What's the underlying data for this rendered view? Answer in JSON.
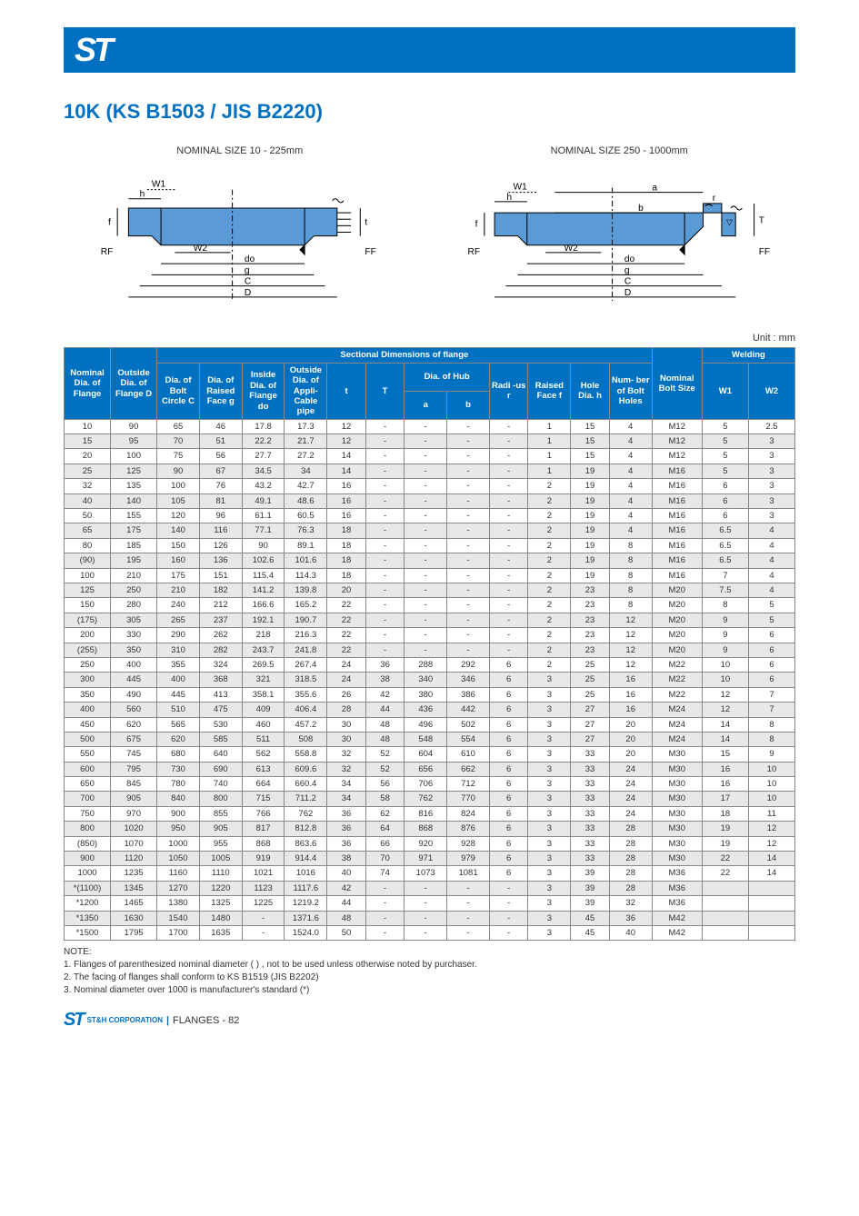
{
  "logo": "ST",
  "title": "10K (KS B1503 / JIS B2220)",
  "diagram1_label": "NOMINAL SIZE 10 - 225mm",
  "diagram2_label": "NOMINAL SIZE 250 - 1000mm",
  "unit_label": "Unit : mm",
  "colors": {
    "brand": "#0070c0",
    "header_bg": "#0070c0",
    "header_fg": "#ffffff",
    "row_even": "#e8e8e8",
    "row_odd": "#ffffff",
    "border": "#888888",
    "diagram_fill": "#5b9bd5"
  },
  "headers": {
    "h1": "Nominal Dia. of Flange",
    "h2": "Outside Dia. of Flange D",
    "sectional": "Sectional Dimensions of flange",
    "h3": "Dia. of Bolt Circle C",
    "h4": "Dia. of Raised Face g",
    "h5": "Inside Dia. of Flange do",
    "h6": "Outside Dia. of Appli- Cable pipe",
    "h7": "t",
    "h8": "T",
    "hub": "Dia. of Hub",
    "h9": "a",
    "h10": "b",
    "h11": "Radi -us r",
    "h12": "Raised Face f",
    "h13": "Hole Dia. h",
    "h14": "Num- ber of Bolt Holes",
    "h15": "Nominal Bolt Size",
    "welding": "Welding",
    "h16": "W1",
    "h17": "W2"
  },
  "rows": [
    [
      "10",
      "90",
      "65",
      "46",
      "17.8",
      "17.3",
      "12",
      "-",
      "-",
      "-",
      "-",
      "1",
      "15",
      "4",
      "M12",
      "5",
      "2.5"
    ],
    [
      "15",
      "95",
      "70",
      "51",
      "22.2",
      "21.7",
      "12",
      "-",
      "-",
      "-",
      "-",
      "1",
      "15",
      "4",
      "M12",
      "5",
      "3"
    ],
    [
      "20",
      "100",
      "75",
      "56",
      "27.7",
      "27.2",
      "14",
      "-",
      "-",
      "-",
      "-",
      "1",
      "15",
      "4",
      "M12",
      "5",
      "3"
    ],
    [
      "25",
      "125",
      "90",
      "67",
      "34.5",
      "34",
      "14",
      "-",
      "-",
      "-",
      "-",
      "1",
      "19",
      "4",
      "M16",
      "5",
      "3"
    ],
    [
      "32",
      "135",
      "100",
      "76",
      "43.2",
      "42.7",
      "16",
      "-",
      "-",
      "-",
      "-",
      "2",
      "19",
      "4",
      "M16",
      "6",
      "3"
    ],
    [
      "40",
      "140",
      "105",
      "81",
      "49.1",
      "48.6",
      "16",
      "-",
      "-",
      "-",
      "-",
      "2",
      "19",
      "4",
      "M16",
      "6",
      "3"
    ],
    [
      "50",
      "155",
      "120",
      "96",
      "61.1",
      "60.5",
      "16",
      "-",
      "-",
      "-",
      "-",
      "2",
      "19",
      "4",
      "M16",
      "6",
      "3"
    ],
    [
      "65",
      "175",
      "140",
      "116",
      "77.1",
      "76.3",
      "18",
      "-",
      "-",
      "-",
      "-",
      "2",
      "19",
      "4",
      "M16",
      "6.5",
      "4"
    ],
    [
      "80",
      "185",
      "150",
      "126",
      "90",
      "89.1",
      "18",
      "-",
      "-",
      "-",
      "-",
      "2",
      "19",
      "8",
      "M16",
      "6.5",
      "4"
    ],
    [
      "(90)",
      "195",
      "160",
      "136",
      "102.6",
      "101.6",
      "18",
      "-",
      "-",
      "-",
      "-",
      "2",
      "19",
      "8",
      "M16",
      "6.5",
      "4"
    ],
    [
      "100",
      "210",
      "175",
      "151",
      "115.4",
      "114.3",
      "18",
      "-",
      "-",
      "-",
      "-",
      "2",
      "19",
      "8",
      "M16",
      "7",
      "4"
    ],
    [
      "125",
      "250",
      "210",
      "182",
      "141.2",
      "139.8",
      "20",
      "-",
      "-",
      "-",
      "-",
      "2",
      "23",
      "8",
      "M20",
      "7.5",
      "4"
    ],
    [
      "150",
      "280",
      "240",
      "212",
      "166.6",
      "165.2",
      "22",
      "-",
      "-",
      "-",
      "-",
      "2",
      "23",
      "8",
      "M20",
      "8",
      "5"
    ],
    [
      "(175)",
      "305",
      "265",
      "237",
      "192.1",
      "190.7",
      "22",
      "-",
      "-",
      "-",
      "-",
      "2",
      "23",
      "12",
      "M20",
      "9",
      "5"
    ],
    [
      "200",
      "330",
      "290",
      "262",
      "218",
      "216.3",
      "22",
      "-",
      "-",
      "-",
      "-",
      "2",
      "23",
      "12",
      "M20",
      "9",
      "6"
    ],
    [
      "(255)",
      "350",
      "310",
      "282",
      "243.7",
      "241.8",
      "22",
      "-",
      "-",
      "-",
      "-",
      "2",
      "23",
      "12",
      "M20",
      "9",
      "6"
    ],
    [
      "250",
      "400",
      "355",
      "324",
      "269.5",
      "267.4",
      "24",
      "36",
      "288",
      "292",
      "6",
      "2",
      "25",
      "12",
      "M22",
      "10",
      "6"
    ],
    [
      "300",
      "445",
      "400",
      "368",
      "321",
      "318.5",
      "24",
      "38",
      "340",
      "346",
      "6",
      "3",
      "25",
      "16",
      "M22",
      "10",
      "6"
    ],
    [
      "350",
      "490",
      "445",
      "413",
      "358.1",
      "355.6",
      "26",
      "42",
      "380",
      "386",
      "6",
      "3",
      "25",
      "16",
      "M22",
      "12",
      "7"
    ],
    [
      "400",
      "560",
      "510",
      "475",
      "409",
      "406.4",
      "28",
      "44",
      "436",
      "442",
      "6",
      "3",
      "27",
      "16",
      "M24",
      "12",
      "7"
    ],
    [
      "450",
      "620",
      "565",
      "530",
      "460",
      "457.2",
      "30",
      "48",
      "496",
      "502",
      "6",
      "3",
      "27",
      "20",
      "M24",
      "14",
      "8"
    ],
    [
      "500",
      "675",
      "620",
      "585",
      "511",
      "508",
      "30",
      "48",
      "548",
      "554",
      "6",
      "3",
      "27",
      "20",
      "M24",
      "14",
      "8"
    ],
    [
      "550",
      "745",
      "680",
      "640",
      "562",
      "558.8",
      "32",
      "52",
      "604",
      "610",
      "6",
      "3",
      "33",
      "20",
      "M30",
      "15",
      "9"
    ],
    [
      "600",
      "795",
      "730",
      "690",
      "613",
      "609.6",
      "32",
      "52",
      "656",
      "662",
      "6",
      "3",
      "33",
      "24",
      "M30",
      "16",
      "10"
    ],
    [
      "650",
      "845",
      "780",
      "740",
      "664",
      "660.4",
      "34",
      "56",
      "706",
      "712",
      "6",
      "3",
      "33",
      "24",
      "M30",
      "16",
      "10"
    ],
    [
      "700",
      "905",
      "840",
      "800",
      "715",
      "711.2",
      "34",
      "58",
      "762",
      "770",
      "6",
      "3",
      "33",
      "24",
      "M30",
      "17",
      "10"
    ],
    [
      "750",
      "970",
      "900",
      "855",
      "766",
      "762",
      "36",
      "62",
      "816",
      "824",
      "6",
      "3",
      "33",
      "24",
      "M30",
      "18",
      "11"
    ],
    [
      "800",
      "1020",
      "950",
      "905",
      "817",
      "812.8",
      "36",
      "64",
      "868",
      "876",
      "6",
      "3",
      "33",
      "28",
      "M30",
      "19",
      "12"
    ],
    [
      "(850)",
      "1070",
      "1000",
      "955",
      "868",
      "863.6",
      "36",
      "66",
      "920",
      "928",
      "6",
      "3",
      "33",
      "28",
      "M30",
      "19",
      "12"
    ],
    [
      "900",
      "1120",
      "1050",
      "1005",
      "919",
      "914.4",
      "38",
      "70",
      "971",
      "979",
      "6",
      "3",
      "33",
      "28",
      "M30",
      "22",
      "14"
    ],
    [
      "1000",
      "1235",
      "1160",
      "1110",
      "1021",
      "1016",
      "40",
      "74",
      "1073",
      "1081",
      "6",
      "3",
      "39",
      "28",
      "M36",
      "22",
      "14"
    ],
    [
      "*(1100)",
      "1345",
      "1270",
      "1220",
      "1123",
      "1117.6",
      "42",
      "-",
      "-",
      "-",
      "-",
      "3",
      "39",
      "28",
      "M36",
      "",
      ""
    ],
    [
      "*1200",
      "1465",
      "1380",
      "1325",
      "1225",
      "1219.2",
      "44",
      "-",
      "-",
      "-",
      "-",
      "3",
      "39",
      "32",
      "M36",
      "",
      ""
    ],
    [
      "*1350",
      "1630",
      "1540",
      "1480",
      "-",
      "1371.6",
      "48",
      "-",
      "-",
      "-",
      "-",
      "3",
      "45",
      "36",
      "M42",
      "",
      ""
    ],
    [
      "*1500",
      "1795",
      "1700",
      "1635",
      "-",
      "1524.0",
      "50",
      "-",
      "-",
      "-",
      "-",
      "3",
      "45",
      "40",
      "M42",
      "",
      ""
    ]
  ],
  "notes_title": "NOTE:",
  "note1": "1. Flanges of parenthesized nominal diameter (   ) , not to be used unless otherwise noted by purchaser.",
  "note2": "2. The facing of flanges shall conform to KS B1519 (JIS B2202)",
  "note3": "3. Nominal diameter over 1000 is manufacturer's standard (*)",
  "footer": {
    "logo": "ST",
    "corp": "ST&H CORPORATION",
    "page": "FLANGES - 82"
  },
  "diagram_text": {
    "W1": "W1",
    "W2": "W2",
    "h": "h",
    "f": "f",
    "t": "t",
    "T": "T",
    "RF": "RF",
    "FF": "FF",
    "do": "do",
    "g": "g",
    "C": "C",
    "D": "D",
    "a": "a",
    "b": "b",
    "r": "r"
  }
}
